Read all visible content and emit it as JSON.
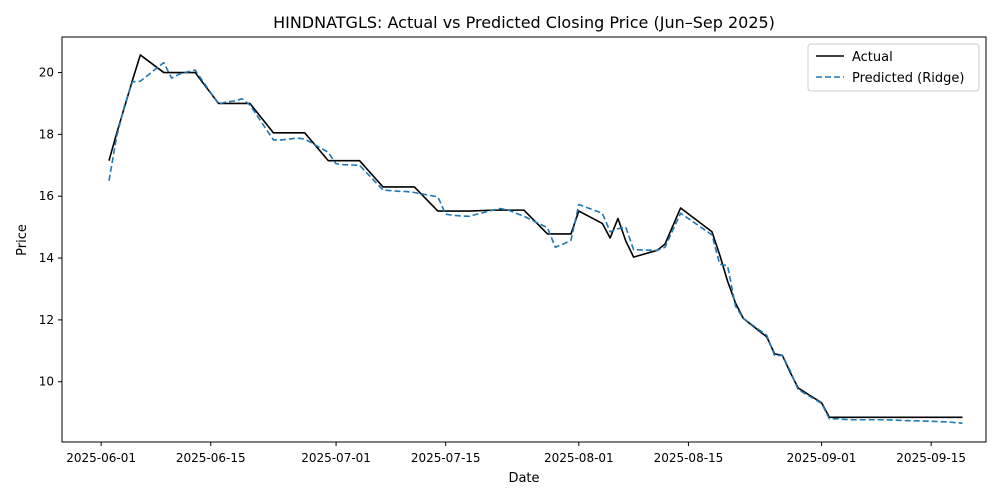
{
  "chart_data": {
    "type": "line",
    "title": "HINDNATGLS: Actual vs Predicted Closing Price (Jun–Sep 2025)",
    "xlabel": "Date",
    "ylabel": "Price",
    "xlim": [
      "2025-05-27",
      "2025-09-22"
    ],
    "ylim": [
      8.05,
      21.15
    ],
    "x_ticks": [
      "2025-06-01",
      "2025-06-15",
      "2025-07-01",
      "2025-07-15",
      "2025-08-01",
      "2025-08-15",
      "2025-09-01",
      "2025-09-15"
    ],
    "y_ticks": [
      10,
      12,
      14,
      16,
      18,
      20
    ],
    "grid": false,
    "legend_position": "top-right",
    "series": [
      {
        "name": "Actual",
        "style": "solid",
        "color": "#000000",
        "points": [
          [
            "2025-06-02",
            17.15
          ],
          [
            "2025-06-03",
            18.05
          ],
          [
            "2025-06-04",
            18.9
          ],
          [
            "2025-06-05",
            19.75
          ],
          [
            "2025-06-06",
            20.57
          ],
          [
            "2025-06-09",
            20.0
          ],
          [
            "2025-06-10",
            20.0
          ],
          [
            "2025-06-11",
            20.0
          ],
          [
            "2025-06-12",
            20.0
          ],
          [
            "2025-06-13",
            20.0
          ],
          [
            "2025-06-16",
            19.0
          ],
          [
            "2025-06-17",
            19.0
          ],
          [
            "2025-06-18",
            19.0
          ],
          [
            "2025-06-19",
            19.0
          ],
          [
            "2025-06-20",
            19.0
          ],
          [
            "2025-06-23",
            18.05
          ],
          [
            "2025-06-24",
            18.05
          ],
          [
            "2025-06-25",
            18.05
          ],
          [
            "2025-06-26",
            18.05
          ],
          [
            "2025-06-27",
            18.05
          ],
          [
            "2025-06-30",
            17.15
          ],
          [
            "2025-07-01",
            17.15
          ],
          [
            "2025-07-02",
            17.15
          ],
          [
            "2025-07-03",
            17.15
          ],
          [
            "2025-07-04",
            17.15
          ],
          [
            "2025-07-07",
            16.3
          ],
          [
            "2025-07-08",
            16.3
          ],
          [
            "2025-07-09",
            16.3
          ],
          [
            "2025-07-10",
            16.3
          ],
          [
            "2025-07-11",
            16.3
          ],
          [
            "2025-07-14",
            15.52
          ],
          [
            "2025-07-15",
            15.52
          ],
          [
            "2025-07-16",
            15.52
          ],
          [
            "2025-07-17",
            15.52
          ],
          [
            "2025-07-18",
            15.52
          ],
          [
            "2025-07-21",
            15.55
          ],
          [
            "2025-07-22",
            15.55
          ],
          [
            "2025-07-23",
            15.55
          ],
          [
            "2025-07-24",
            15.55
          ],
          [
            "2025-07-25",
            15.55
          ],
          [
            "2025-07-28",
            14.78
          ],
          [
            "2025-07-29",
            14.78
          ],
          [
            "2025-07-30",
            14.78
          ],
          [
            "2025-07-31",
            14.78
          ],
          [
            "2025-08-01",
            15.52
          ],
          [
            "2025-08-04",
            15.12
          ],
          [
            "2025-08-05",
            14.65
          ],
          [
            "2025-08-06",
            15.28
          ],
          [
            "2025-08-07",
            14.55
          ],
          [
            "2025-08-08",
            14.03
          ],
          [
            "2025-08-11",
            14.25
          ],
          [
            "2025-08-12",
            14.45
          ],
          [
            "2025-08-14",
            15.62
          ],
          [
            "2025-08-18",
            14.85
          ],
          [
            "2025-08-19",
            14.1
          ],
          [
            "2025-08-20",
            13.25
          ],
          [
            "2025-08-21",
            12.55
          ],
          [
            "2025-08-22",
            12.05
          ],
          [
            "2025-08-25",
            11.45
          ],
          [
            "2025-08-26",
            10.9
          ],
          [
            "2025-08-27",
            10.85
          ],
          [
            "2025-08-28",
            10.3
          ],
          [
            "2025-08-29",
            9.8
          ],
          [
            "2025-09-01",
            9.32
          ],
          [
            "2025-09-02",
            8.85
          ],
          [
            "2025-09-03",
            8.85
          ],
          [
            "2025-09-04",
            8.85
          ],
          [
            "2025-09-05",
            8.85
          ],
          [
            "2025-09-08",
            8.85
          ],
          [
            "2025-09-09",
            8.85
          ],
          [
            "2025-09-10",
            8.85
          ],
          [
            "2025-09-11",
            8.85
          ],
          [
            "2025-09-12",
            8.85
          ],
          [
            "2025-09-15",
            8.85
          ],
          [
            "2025-09-16",
            8.85
          ],
          [
            "2025-09-17",
            8.85
          ],
          [
            "2025-09-18",
            8.85
          ],
          [
            "2025-09-19",
            8.85
          ]
        ]
      },
      {
        "name": "Predicted (Ridge)",
        "style": "dashed",
        "color": "#1f77b4",
        "points": [
          [
            "2025-06-02",
            16.5
          ],
          [
            "2025-06-03",
            17.95
          ],
          [
            "2025-06-04",
            18.95
          ],
          [
            "2025-06-05",
            19.7
          ],
          [
            "2025-06-06",
            19.72
          ],
          [
            "2025-06-09",
            20.32
          ],
          [
            "2025-06-10",
            19.82
          ],
          [
            "2025-06-11",
            19.95
          ],
          [
            "2025-06-12",
            20.02
          ],
          [
            "2025-06-13",
            20.08
          ],
          [
            "2025-06-16",
            18.98
          ],
          [
            "2025-06-17",
            19.05
          ],
          [
            "2025-06-18",
            19.08
          ],
          [
            "2025-06-19",
            19.15
          ],
          [
            "2025-06-20",
            18.95
          ],
          [
            "2025-06-23",
            17.82
          ],
          [
            "2025-06-24",
            17.82
          ],
          [
            "2025-06-25",
            17.85
          ],
          [
            "2025-06-26",
            17.88
          ],
          [
            "2025-06-27",
            17.85
          ],
          [
            "2025-06-30",
            17.42
          ],
          [
            "2025-07-01",
            17.05
          ],
          [
            "2025-07-02",
            17.02
          ],
          [
            "2025-07-03",
            17.01
          ],
          [
            "2025-07-04",
            17.0
          ],
          [
            "2025-07-07",
            16.2
          ],
          [
            "2025-07-08",
            16.18
          ],
          [
            "2025-07-09",
            16.16
          ],
          [
            "2025-07-10",
            16.15
          ],
          [
            "2025-07-11",
            16.12
          ],
          [
            "2025-07-14",
            15.98
          ],
          [
            "2025-07-15",
            15.42
          ],
          [
            "2025-07-16",
            15.38
          ],
          [
            "2025-07-17",
            15.36
          ],
          [
            "2025-07-18",
            15.35
          ],
          [
            "2025-07-21",
            15.55
          ],
          [
            "2025-07-22",
            15.6
          ],
          [
            "2025-07-23",
            15.55
          ],
          [
            "2025-07-24",
            15.45
          ],
          [
            "2025-07-25",
            15.35
          ],
          [
            "2025-07-28",
            14.98
          ],
          [
            "2025-07-29",
            14.35
          ],
          [
            "2025-07-30",
            14.45
          ],
          [
            "2025-07-31",
            14.58
          ],
          [
            "2025-08-01",
            15.73
          ],
          [
            "2025-08-04",
            15.45
          ],
          [
            "2025-08-05",
            14.85
          ],
          [
            "2025-08-06",
            14.95
          ],
          [
            "2025-08-07",
            15.0
          ],
          [
            "2025-08-08",
            14.27
          ],
          [
            "2025-08-11",
            14.25
          ],
          [
            "2025-08-12",
            14.35
          ],
          [
            "2025-08-14",
            15.45
          ],
          [
            "2025-08-18",
            14.75
          ],
          [
            "2025-08-19",
            13.8
          ],
          [
            "2025-08-20",
            13.75
          ],
          [
            "2025-08-21",
            12.45
          ],
          [
            "2025-08-22",
            12.05
          ],
          [
            "2025-08-25",
            11.5
          ],
          [
            "2025-08-26",
            10.85
          ],
          [
            "2025-08-27",
            10.85
          ],
          [
            "2025-08-28",
            10.35
          ],
          [
            "2025-08-29",
            9.75
          ],
          [
            "2025-09-01",
            9.3
          ],
          [
            "2025-09-02",
            8.8
          ],
          [
            "2025-09-03",
            8.8
          ],
          [
            "2025-09-04",
            8.78
          ],
          [
            "2025-09-05",
            8.77
          ],
          [
            "2025-09-08",
            8.77
          ],
          [
            "2025-09-09",
            8.77
          ],
          [
            "2025-09-10",
            8.76
          ],
          [
            "2025-09-11",
            8.75
          ],
          [
            "2025-09-12",
            8.74
          ],
          [
            "2025-09-15",
            8.72
          ],
          [
            "2025-09-16",
            8.71
          ],
          [
            "2025-09-17",
            8.7
          ],
          [
            "2025-09-18",
            8.68
          ],
          [
            "2025-09-19",
            8.66
          ]
        ]
      }
    ]
  }
}
